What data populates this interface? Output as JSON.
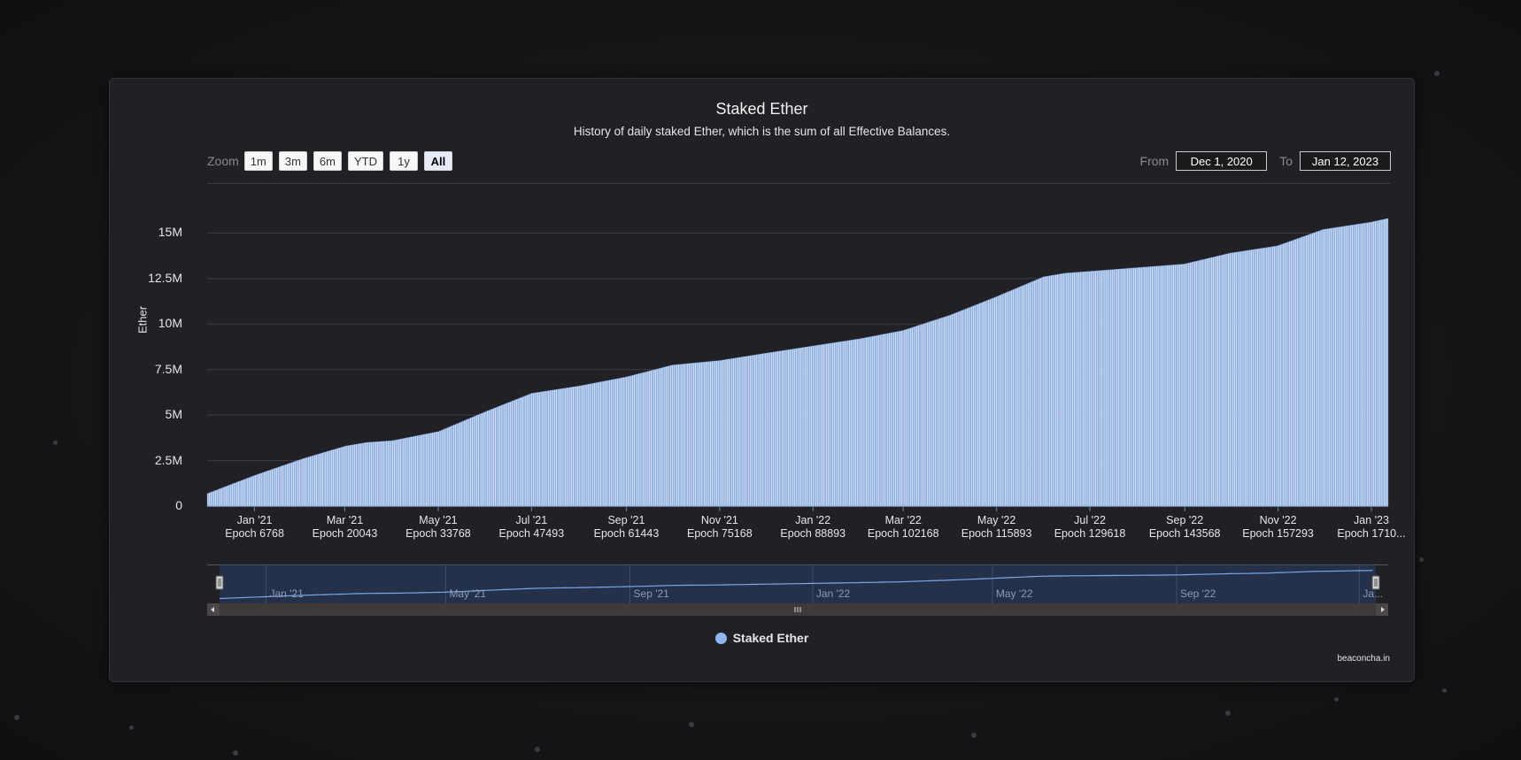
{
  "colors": {
    "bar": "#c7dbf7",
    "bar_stroke": "#5b7fbd",
    "navigator_line": "#7aa6e8",
    "legend": "#90b5f0"
  },
  "chart": {
    "title": "Staked Ether",
    "subtitle": "History of daily staked Ether, which is the sum of all Effective Balances.",
    "zoom_label": "Zoom",
    "zoom_buttons": [
      {
        "label": "1m",
        "active": false
      },
      {
        "label": "3m",
        "active": false
      },
      {
        "label": "6m",
        "active": false
      },
      {
        "label": "YTD",
        "active": false
      },
      {
        "label": "1y",
        "active": false
      },
      {
        "label": "All",
        "active": true
      }
    ],
    "from_label": "From",
    "from_value": "Dec 1, 2020",
    "to_label": "To",
    "to_value": "Jan 12, 2023",
    "credits": "beaconcha.in"
  },
  "chart_data": {
    "type": "bar",
    "title": "Staked Ether",
    "ylabel": "Ether",
    "ylim": [
      0,
      17500000
    ],
    "y_ticks": [
      {
        "value": 0,
        "label": "0"
      },
      {
        "value": 2500000,
        "label": "2.5M"
      },
      {
        "value": 5000000,
        "label": "5M"
      },
      {
        "value": 7500000,
        "label": "7.5M"
      },
      {
        "value": 10000000,
        "label": "10M"
      },
      {
        "value": 12500000,
        "label": "12.5M"
      },
      {
        "value": 15000000,
        "label": "15M"
      }
    ],
    "x_range": [
      "2020-12-01",
      "2023-01-12"
    ],
    "x_ticks": [
      {
        "date": "2021-01-01",
        "month": "Jan '21",
        "epoch": "Epoch 6768"
      },
      {
        "date": "2021-03-01",
        "month": "Mar '21",
        "epoch": "Epoch 20043"
      },
      {
        "date": "2021-05-01",
        "month": "May '21",
        "epoch": "Epoch 33768"
      },
      {
        "date": "2021-07-01",
        "month": "Jul '21",
        "epoch": "Epoch 47493"
      },
      {
        "date": "2021-09-01",
        "month": "Sep '21",
        "epoch": "Epoch 61443"
      },
      {
        "date": "2021-11-01",
        "month": "Nov '21",
        "epoch": "Epoch 75168"
      },
      {
        "date": "2022-01-01",
        "month": "Jan '22",
        "epoch": "Epoch 88893"
      },
      {
        "date": "2022-03-01",
        "month": "Mar '22",
        "epoch": "Epoch 102168"
      },
      {
        "date": "2022-05-01",
        "month": "May '22",
        "epoch": "Epoch 115893"
      },
      {
        "date": "2022-07-01",
        "month": "Jul '22",
        "epoch": "Epoch 129618"
      },
      {
        "date": "2022-09-01",
        "month": "Sep '22",
        "epoch": "Epoch 143568"
      },
      {
        "date": "2022-11-01",
        "month": "Nov '22",
        "epoch": "Epoch 157293"
      },
      {
        "date": "2023-01-01",
        "month": "Jan '23",
        "epoch": "Epoch 1710..."
      }
    ],
    "navigator_ticks": [
      {
        "date": "2021-01-01",
        "label": "Jan '21"
      },
      {
        "date": "2021-05-01",
        "label": "May '21"
      },
      {
        "date": "2021-09-01",
        "label": "Sep '21"
      },
      {
        "date": "2022-01-01",
        "label": "Jan '22"
      },
      {
        "date": "2022-05-01",
        "label": "May '22"
      },
      {
        "date": "2022-09-01",
        "label": "Sep '22"
      },
      {
        "date": "2023-01-01",
        "label": "Ja..."
      }
    ],
    "series": [
      {
        "name": "Staked Ether",
        "points": [
          [
            "2020-12-01",
            700000
          ],
          [
            "2021-01-01",
            1700000
          ],
          [
            "2021-02-01",
            2600000
          ],
          [
            "2021-03-01",
            3300000
          ],
          [
            "2021-03-15",
            3500000
          ],
          [
            "2021-04-01",
            3600000
          ],
          [
            "2021-05-01",
            4100000
          ],
          [
            "2021-06-01",
            5200000
          ],
          [
            "2021-07-01",
            6200000
          ],
          [
            "2021-08-01",
            6600000
          ],
          [
            "2021-09-01",
            7100000
          ],
          [
            "2021-10-01",
            7750000
          ],
          [
            "2021-11-01",
            8000000
          ],
          [
            "2021-12-01",
            8400000
          ],
          [
            "2022-01-01",
            8800000
          ],
          [
            "2022-02-01",
            9200000
          ],
          [
            "2022-03-01",
            9650000
          ],
          [
            "2022-04-01",
            10500000
          ],
          [
            "2022-05-01",
            11500000
          ],
          [
            "2022-06-01",
            12600000
          ],
          [
            "2022-06-15",
            12800000
          ],
          [
            "2022-07-01",
            12900000
          ],
          [
            "2022-08-01",
            13100000
          ],
          [
            "2022-09-01",
            13300000
          ],
          [
            "2022-10-01",
            13900000
          ],
          [
            "2022-11-01",
            14300000
          ],
          [
            "2022-12-01",
            15200000
          ],
          [
            "2023-01-01",
            15600000
          ],
          [
            "2023-01-12",
            15800000
          ]
        ]
      }
    ],
    "legend": {
      "position": "bottom-center"
    },
    "grid": true
  }
}
